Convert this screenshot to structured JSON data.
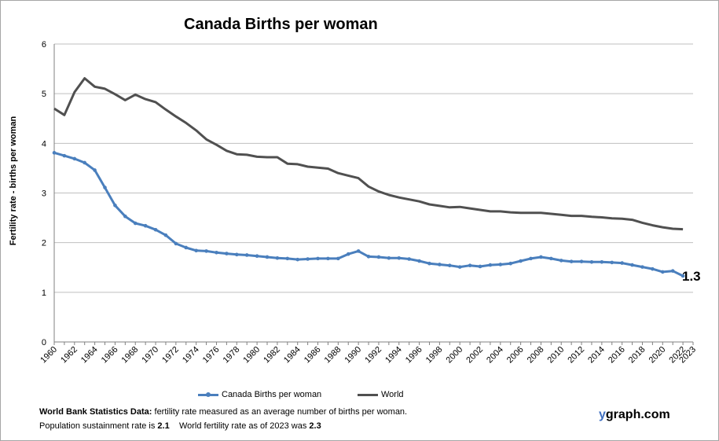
{
  "title": "Canada Births per woman",
  "chart_data": {
    "type": "line",
    "title": "Canada Births per woman",
    "xlabel": "",
    "ylabel": "Fertility rate  - births per woman",
    "ylim": [
      0,
      6
    ],
    "yticks": [
      0,
      1,
      2,
      3,
      4,
      5,
      6
    ],
    "xlim": [
      1960,
      2023
    ],
    "xticks": [
      "1960",
      "1962",
      "1964",
      "1966",
      "1968",
      "1970",
      "1972",
      "1974",
      "1976",
      "1978",
      "1980",
      "1982",
      "1984",
      "1986",
      "1988",
      "1990",
      "1992",
      "1994",
      "1996",
      "1998",
      "2000",
      "2002",
      "2004",
      "2006",
      "2008",
      "2010",
      "2012",
      "2014",
      "2016",
      "2018",
      "2020",
      "2022",
      "2023"
    ],
    "grid": true,
    "legend": "bottom",
    "x": [
      1960,
      1961,
      1962,
      1963,
      1964,
      1965,
      1966,
      1967,
      1968,
      1969,
      1970,
      1971,
      1972,
      1973,
      1974,
      1975,
      1976,
      1977,
      1978,
      1979,
      1980,
      1981,
      1982,
      1983,
      1984,
      1985,
      1986,
      1987,
      1988,
      1989,
      1990,
      1991,
      1992,
      1993,
      1994,
      1995,
      1996,
      1997,
      1998,
      1999,
      2000,
      2001,
      2002,
      2003,
      2004,
      2005,
      2006,
      2007,
      2008,
      2009,
      2010,
      2011,
      2012,
      2013,
      2014,
      2015,
      2016,
      2017,
      2018,
      2019,
      2020,
      2021,
      2022
    ],
    "series": [
      {
        "name": "Canada Births per woman",
        "color": "#4a7fbd",
        "values": [
          3.81,
          3.75,
          3.69,
          3.61,
          3.46,
          3.11,
          2.75,
          2.53,
          2.39,
          2.34,
          2.26,
          2.15,
          1.98,
          1.9,
          1.84,
          1.83,
          1.8,
          1.78,
          1.76,
          1.75,
          1.73,
          1.71,
          1.69,
          1.68,
          1.66,
          1.67,
          1.68,
          1.68,
          1.68,
          1.77,
          1.83,
          1.72,
          1.71,
          1.69,
          1.69,
          1.67,
          1.63,
          1.58,
          1.56,
          1.54,
          1.51,
          1.54,
          1.52,
          1.55,
          1.56,
          1.58,
          1.63,
          1.68,
          1.71,
          1.68,
          1.64,
          1.62,
          1.62,
          1.61,
          1.61,
          1.6,
          1.59,
          1.55,
          1.51,
          1.47,
          1.41,
          1.43,
          1.33
        ]
      },
      {
        "name": "World",
        "color": "#505050",
        "values": [
          4.7,
          4.57,
          5.03,
          5.31,
          5.14,
          5.1,
          4.99,
          4.87,
          4.98,
          4.89,
          4.83,
          4.68,
          4.54,
          4.41,
          4.26,
          4.08,
          3.97,
          3.85,
          3.78,
          3.77,
          3.73,
          3.72,
          3.72,
          3.59,
          3.58,
          3.53,
          3.51,
          3.49,
          3.4,
          3.35,
          3.3,
          3.13,
          3.03,
          2.96,
          2.91,
          2.87,
          2.83,
          2.77,
          2.74,
          2.71,
          2.72,
          2.69,
          2.66,
          2.63,
          2.63,
          2.61,
          2.6,
          2.6,
          2.6,
          2.58,
          2.56,
          2.54,
          2.54,
          2.52,
          2.51,
          2.49,
          2.48,
          2.46,
          2.4,
          2.35,
          2.31,
          2.28,
          2.27
        ]
      }
    ],
    "end_label": "1.3"
  },
  "legend": {
    "canada": "Canada Births per woman",
    "world": "World"
  },
  "notes": {
    "source_bold": "World Bank Statistics Data:",
    "source_text": " fertility rate measured as an average number  of births per woman.",
    "sustain_text": "Population sustainment rate is ",
    "sustain_value": "2.1",
    "world_text": "    World fertility rate as of 2023 was ",
    "world_value": "2.3"
  },
  "brand": {
    "y": "y",
    "rest": "graph.com"
  }
}
